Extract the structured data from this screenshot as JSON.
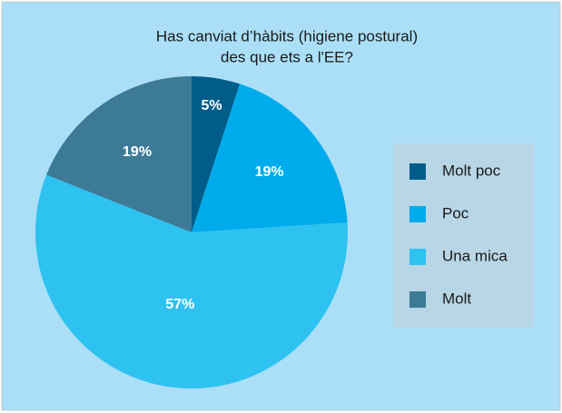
{
  "chart_data": {
    "type": "pie",
    "title_lines": [
      "Has canviat d’hàbits (higiene postural)",
      "des que ets a l'EE?"
    ],
    "categories": [
      "Molt poc",
      "Poc",
      "Una mica",
      "Molt"
    ],
    "values": [
      5,
      19,
      57,
      19
    ],
    "value_labels": [
      "5%",
      "19%",
      "57%",
      "19%"
    ],
    "colors": [
      "#005d8a",
      "#00abeb",
      "#2ec2f0",
      "#3d7a96"
    ],
    "legend": "right"
  }
}
